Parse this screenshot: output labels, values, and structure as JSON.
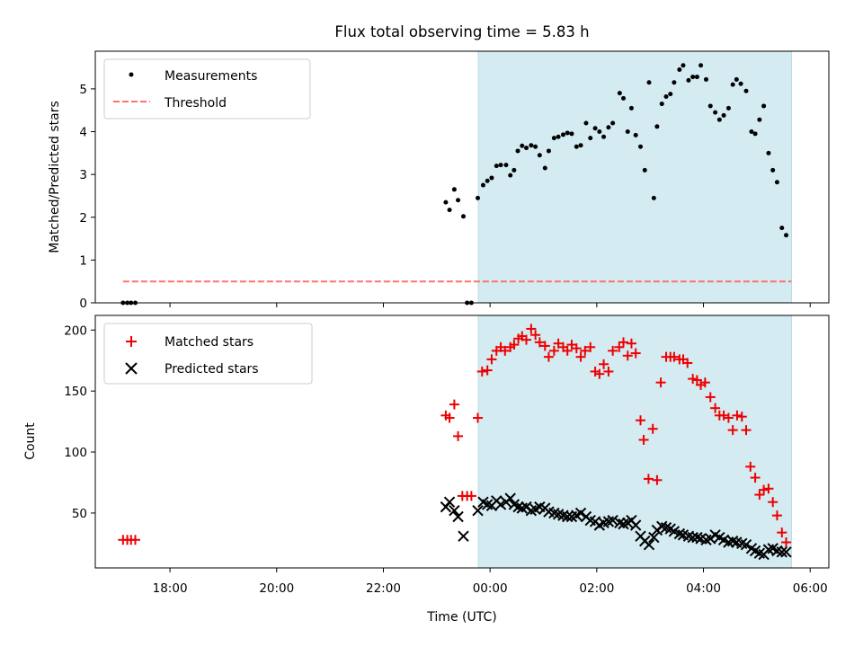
{
  "figure": {
    "title": "Flux total observing time = 5.83 h"
  },
  "chart_data": [
    {
      "type": "scatter",
      "panel": "top",
      "xlabel": "",
      "ylabel": "Matched/Predicted stars",
      "xlim": [
        16.6,
        30.35
      ],
      "ylim": [
        0,
        5.88
      ],
      "yticks": [
        0,
        1,
        2,
        3,
        4,
        5
      ],
      "shaded_span": [
        23.78,
        29.65
      ],
      "legend_position": "upper-left",
      "series": [
        {
          "name": "Measurements",
          "legend": "Measurements",
          "color": "#000000",
          "marker": "dot",
          "points": [
            [
              17.12,
              0
            ],
            [
              17.2,
              0
            ],
            [
              17.27,
              0
            ],
            [
              17.35,
              0
            ],
            [
              23.17,
              2.35
            ],
            [
              23.24,
              2.17
            ],
            [
              23.33,
              2.65
            ],
            [
              23.4,
              2.4
            ],
            [
              23.5,
              2.02
            ],
            [
              23.57,
              0
            ],
            [
              23.65,
              0
            ],
            [
              23.77,
              2.45
            ],
            [
              23.87,
              2.75
            ],
            [
              23.95,
              2.85
            ],
            [
              24.03,
              2.92
            ],
            [
              24.12,
              3.2
            ],
            [
              24.2,
              3.22
            ],
            [
              24.3,
              3.22
            ],
            [
              24.38,
              2.98
            ],
            [
              24.45,
              3.1
            ],
            [
              24.52,
              3.55
            ],
            [
              24.6,
              3.67
            ],
            [
              24.68,
              3.62
            ],
            [
              24.77,
              3.68
            ],
            [
              24.85,
              3.65
            ],
            [
              24.93,
              3.45
            ],
            [
              25.03,
              3.15
            ],
            [
              25.1,
              3.55
            ],
            [
              25.2,
              3.85
            ],
            [
              25.28,
              3.88
            ],
            [
              25.37,
              3.93
            ],
            [
              25.45,
              3.97
            ],
            [
              25.53,
              3.95
            ],
            [
              25.62,
              3.65
            ],
            [
              25.7,
              3.68
            ],
            [
              25.8,
              4.2
            ],
            [
              25.88,
              3.85
            ],
            [
              25.97,
              4.08
            ],
            [
              26.05,
              4.0
            ],
            [
              26.13,
              3.88
            ],
            [
              26.22,
              4.1
            ],
            [
              26.3,
              4.2
            ],
            [
              26.43,
              4.9
            ],
            [
              26.5,
              4.78
            ],
            [
              26.58,
              4.0
            ],
            [
              26.65,
              4.55
            ],
            [
              26.73,
              3.92
            ],
            [
              26.82,
              3.65
            ],
            [
              26.9,
              3.1
            ],
            [
              26.98,
              5.15
            ],
            [
              27.07,
              2.45
            ],
            [
              27.13,
              4.12
            ],
            [
              27.22,
              4.65
            ],
            [
              27.3,
              4.82
            ],
            [
              27.38,
              4.88
            ],
            [
              27.45,
              5.15
            ],
            [
              27.55,
              5.45
            ],
            [
              27.62,
              5.55
            ],
            [
              27.72,
              5.2
            ],
            [
              27.8,
              5.28
            ],
            [
              27.88,
              5.28
            ],
            [
              27.95,
              5.55
            ],
            [
              28.05,
              5.22
            ],
            [
              28.13,
              4.6
            ],
            [
              28.22,
              4.45
            ],
            [
              28.3,
              4.28
            ],
            [
              28.38,
              4.38
            ],
            [
              28.47,
              4.55
            ],
            [
              28.55,
              5.1
            ],
            [
              28.62,
              5.22
            ],
            [
              28.7,
              5.12
            ],
            [
              28.8,
              4.95
            ],
            [
              28.9,
              4.0
            ],
            [
              28.97,
              3.95
            ],
            [
              29.05,
              4.28
            ],
            [
              29.13,
              4.6
            ],
            [
              29.22,
              3.5
            ],
            [
              29.3,
              3.1
            ],
            [
              29.38,
              2.82
            ],
            [
              29.47,
              1.75
            ],
            [
              29.55,
              1.58
            ]
          ]
        },
        {
          "name": "Threshold",
          "legend": "Threshold",
          "color": "#ff7070",
          "style": "dashed",
          "x": [
            17.12,
            29.65
          ],
          "y": [
            0.5,
            0.5
          ]
        }
      ]
    },
    {
      "type": "scatter",
      "panel": "bottom",
      "xlabel": "Time (UTC)",
      "ylabel": "Count",
      "xlim": [
        16.6,
        30.35
      ],
      "ylim": [
        5,
        212
      ],
      "yticks": [
        50,
        100,
        150,
        200
      ],
      "xticks": [
        18,
        20,
        22,
        24,
        26,
        28,
        30
      ],
      "xtick_labels": [
        "18:00",
        "20:00",
        "22:00",
        "00:00",
        "02:00",
        "04:00",
        "06:00"
      ],
      "shaded_span": [
        23.78,
        29.65
      ],
      "legend_position": "upper-left",
      "series": [
        {
          "name": "Matched stars",
          "legend": "Matched stars",
          "color": "#ee0000",
          "marker": "plus",
          "points": [
            [
              17.12,
              28
            ],
            [
              17.2,
              28
            ],
            [
              17.27,
              28
            ],
            [
              17.35,
              28
            ],
            [
              23.17,
              130
            ],
            [
              23.24,
              128
            ],
            [
              23.33,
              139
            ],
            [
              23.4,
              113
            ],
            [
              23.48,
              64
            ],
            [
              23.57,
              64
            ],
            [
              23.65,
              64
            ],
            [
              23.77,
              128
            ],
            [
              23.85,
              166
            ],
            [
              23.95,
              167
            ],
            [
              24.03,
              176
            ],
            [
              24.12,
              183
            ],
            [
              24.2,
              186
            ],
            [
              24.28,
              183
            ],
            [
              24.38,
              186
            ],
            [
              24.45,
              188
            ],
            [
              24.53,
              193
            ],
            [
              24.6,
              195
            ],
            [
              24.68,
              192
            ],
            [
              24.77,
              201
            ],
            [
              24.85,
              196
            ],
            [
              24.93,
              190
            ],
            [
              25.03,
              187
            ],
            [
              25.1,
              178
            ],
            [
              25.2,
              183
            ],
            [
              25.28,
              189
            ],
            [
              25.37,
              186
            ],
            [
              25.45,
              183
            ],
            [
              25.53,
              188
            ],
            [
              25.62,
              185
            ],
            [
              25.7,
              178
            ],
            [
              25.78,
              183
            ],
            [
              25.88,
              186
            ],
            [
              25.97,
              166
            ],
            [
              26.05,
              164
            ],
            [
              26.13,
              172
            ],
            [
              26.22,
              166
            ],
            [
              26.3,
              183
            ],
            [
              26.42,
              186
            ],
            [
              26.5,
              190
            ],
            [
              26.58,
              179
            ],
            [
              26.65,
              189
            ],
            [
              26.73,
              181
            ],
            [
              26.82,
              126
            ],
            [
              26.88,
              110
            ],
            [
              26.97,
              78
            ],
            [
              27.05,
              119
            ],
            [
              27.13,
              77
            ],
            [
              27.2,
              157
            ],
            [
              27.3,
              178
            ],
            [
              27.38,
              178
            ],
            [
              27.45,
              178
            ],
            [
              27.55,
              176
            ],
            [
              27.62,
              176
            ],
            [
              27.7,
              173
            ],
            [
              27.8,
              160
            ],
            [
              27.88,
              159
            ],
            [
              27.95,
              155
            ],
            [
              28.03,
              157
            ],
            [
              28.13,
              145
            ],
            [
              28.22,
              136
            ],
            [
              28.3,
              130
            ],
            [
              28.38,
              130
            ],
            [
              28.47,
              128
            ],
            [
              28.55,
              118
            ],
            [
              28.63,
              130
            ],
            [
              28.72,
              129
            ],
            [
              28.8,
              118
            ],
            [
              28.88,
              88
            ],
            [
              28.97,
              79
            ],
            [
              29.05,
              65
            ],
            [
              29.13,
              69
            ],
            [
              29.22,
              70
            ],
            [
              29.3,
              59
            ],
            [
              29.38,
              48
            ],
            [
              29.47,
              34
            ],
            [
              29.55,
              26
            ]
          ]
        },
        {
          "name": "Predicted stars",
          "legend": "Predicted stars",
          "color": "#000000",
          "marker": "x",
          "points": [
            [
              23.17,
              55
            ],
            [
              23.24,
              59
            ],
            [
              23.33,
              52
            ],
            [
              23.4,
              47
            ],
            [
              23.5,
              31
            ],
            [
              23.77,
              52
            ],
            [
              23.87,
              59
            ],
            [
              23.95,
              57
            ],
            [
              24.03,
              56
            ],
            [
              24.12,
              60
            ],
            [
              24.2,
              57
            ],
            [
              24.3,
              59
            ],
            [
              24.38,
              62
            ],
            [
              24.45,
              57
            ],
            [
              24.53,
              55
            ],
            [
              24.6,
              54
            ],
            [
              24.68,
              55
            ],
            [
              24.77,
              52
            ],
            [
              24.85,
              53
            ],
            [
              24.93,
              55
            ],
            [
              25.03,
              54
            ],
            [
              25.1,
              51
            ],
            [
              25.2,
              50
            ],
            [
              25.28,
              49
            ],
            [
              25.37,
              48
            ],
            [
              25.45,
              47
            ],
            [
              25.53,
              47
            ],
            [
              25.62,
              48
            ],
            [
              25.7,
              50
            ],
            [
              25.8,
              47
            ],
            [
              25.88,
              44
            ],
            [
              25.97,
              43
            ],
            [
              26.05,
              40
            ],
            [
              26.13,
              42
            ],
            [
              26.22,
              43
            ],
            [
              26.3,
              44
            ],
            [
              26.43,
              42
            ],
            [
              26.5,
              41
            ],
            [
              26.58,
              42
            ],
            [
              26.65,
              44
            ],
            [
              26.73,
              40
            ],
            [
              26.82,
              31
            ],
            [
              26.9,
              27
            ],
            [
              26.98,
              24
            ],
            [
              27.07,
              30
            ],
            [
              27.13,
              36
            ],
            [
              27.22,
              39
            ],
            [
              27.3,
              38
            ],
            [
              27.38,
              37
            ],
            [
              27.45,
              35
            ],
            [
              27.55,
              33
            ],
            [
              27.62,
              32
            ],
            [
              27.72,
              31
            ],
            [
              27.8,
              30
            ],
            [
              27.88,
              30
            ],
            [
              27.95,
              29
            ],
            [
              28.05,
              28
            ],
            [
              28.13,
              29
            ],
            [
              28.22,
              32
            ],
            [
              28.3,
              30
            ],
            [
              28.38,
              28
            ],
            [
              28.47,
              26
            ],
            [
              28.55,
              27
            ],
            [
              28.62,
              26
            ],
            [
              28.72,
              25
            ],
            [
              28.8,
              24
            ],
            [
              28.9,
              21
            ],
            [
              28.97,
              19
            ],
            [
              29.05,
              17
            ],
            [
              29.13,
              16
            ],
            [
              29.22,
              20
            ],
            [
              29.3,
              21
            ],
            [
              29.38,
              19
            ],
            [
              29.47,
              18
            ],
            [
              29.55,
              18
            ]
          ]
        }
      ]
    }
  ],
  "colors": {
    "shade": "#d4ebf1",
    "shade_edge": "#b9dde6",
    "matched": "#ee0000",
    "predicted": "#000000",
    "threshold": "#ff7070",
    "measurements": "#000000"
  }
}
